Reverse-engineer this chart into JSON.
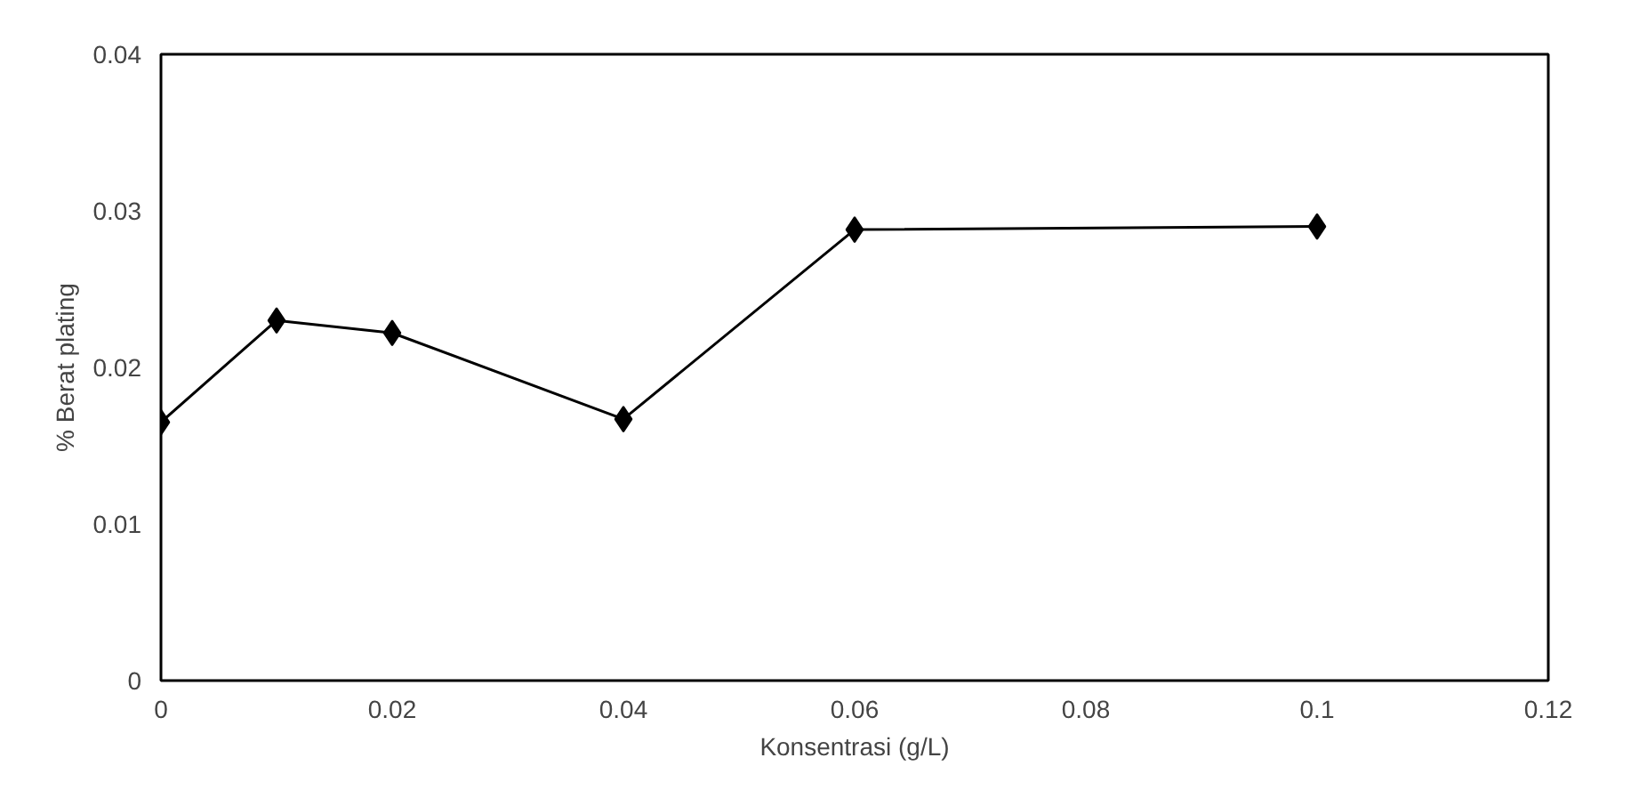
{
  "chart_data": {
    "type": "line",
    "xlabel": "Konsentrasi (g/L)",
    "ylabel": "% Berat plating",
    "x": [
      0,
      0.01,
      0.02,
      0.04,
      0.06,
      0.1
    ],
    "series": [
      {
        "color": "#000000",
        "values": [
          0.0165,
          0.023,
          0.0222,
          0.0167,
          0.0288,
          0.029
        ]
      }
    ],
    "xlim": [
      0,
      0.12
    ],
    "xticks": [
      0,
      0.02,
      0.04,
      0.06,
      0.08,
      0.1,
      0.12
    ],
    "ylim": [
      0,
      0.04
    ],
    "yticks": [
      0,
      0.01,
      0.02,
      0.03,
      0.04
    ],
    "grid": false,
    "marker": "diamond",
    "line_style": "solid"
  }
}
